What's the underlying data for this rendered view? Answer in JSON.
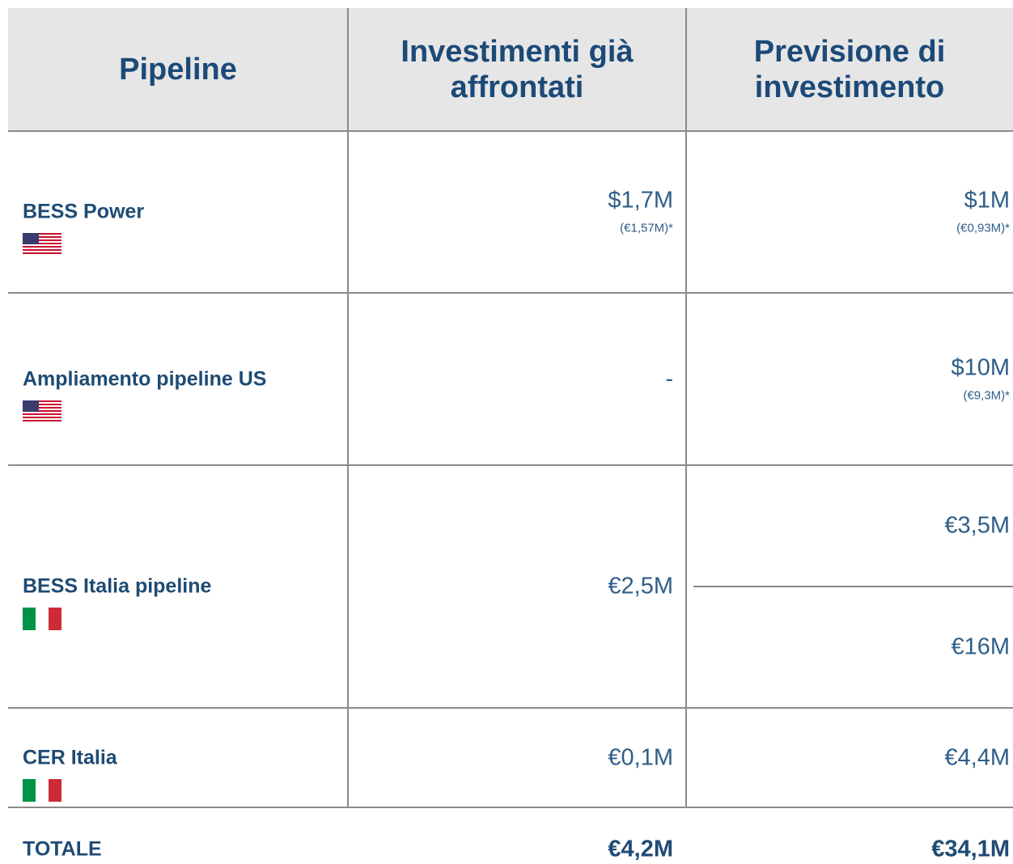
{
  "header": [
    "Pipeline",
    "Investimenti già affrontati",
    "Previsione di investimento"
  ],
  "rows": [
    {
      "label": "BESS Power",
      "flag": "us",
      "invested": {
        "main": "$1,7M",
        "note": "(€1,57M)*"
      },
      "forecast": [
        {
          "main": "$1M",
          "note": "(€0,93M)*"
        }
      ]
    },
    {
      "label": "Ampliamento pipeline US",
      "flag": "us",
      "invested": {
        "main": "-"
      },
      "forecast": [
        {
          "main": "$10M",
          "note": "(€9,3M)*"
        }
      ]
    },
    {
      "label": "BESS Italia pipeline",
      "flag": "it",
      "invested": {
        "main": "€2,5M"
      },
      "forecast": [
        {
          "main": "€3,5M"
        },
        {
          "main": "€16M"
        }
      ]
    },
    {
      "label": "CER Italia",
      "flag": "it",
      "invested": {
        "main": "€0,1M"
      },
      "forecast": [
        {
          "main": "€4,4M"
        }
      ]
    }
  ],
  "total": {
    "label": "TOTALE",
    "invested": "€4,2M",
    "forecast": "€34,1M"
  }
}
